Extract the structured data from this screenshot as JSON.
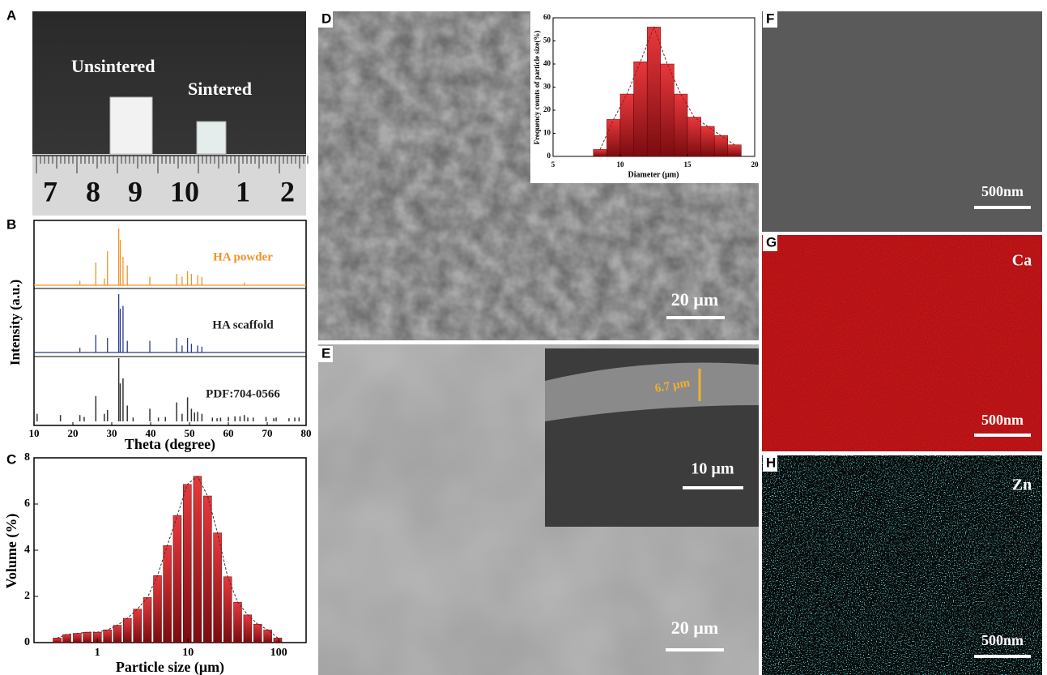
{
  "panel_a": {
    "label": "A",
    "unsintered": "Unsintered",
    "sintered": "Sintered",
    "ruler": [
      "7",
      "8",
      "9",
      "10",
      "1",
      "2"
    ]
  },
  "panel_b": {
    "label": "B",
    "ylabel": "Intensity (a.u.)",
    "xlabel": "Theta (degree)",
    "xlim": [
      10,
      80
    ],
    "xticks": [
      10,
      20,
      30,
      40,
      50,
      60,
      70,
      80
    ],
    "ylim": [
      0,
      1
    ],
    "series": [
      {
        "name": "HA powder",
        "color": "#f0922a",
        "x": [
          21.8,
          25.9,
          28.1,
          28.9,
          31.8,
          32.2,
          32.9,
          34.0,
          39.8,
          46.7,
          48.1,
          49.5,
          50.5,
          52.1,
          53.2,
          64.1
        ],
        "values": [
          0.08,
          0.4,
          0.12,
          0.6,
          1.0,
          0.8,
          0.5,
          0.35,
          0.15,
          0.2,
          0.15,
          0.25,
          0.2,
          0.18,
          0.15,
          0.05
        ]
      },
      {
        "name": "HA scaffold",
        "color": "#2b3990",
        "x": [
          21.8,
          25.9,
          28.9,
          31.8,
          32.2,
          32.9,
          34.0,
          39.8,
          46.7,
          48.1,
          49.5,
          50.5,
          52.1,
          53.2
        ],
        "values": [
          0.08,
          0.3,
          0.25,
          1.0,
          0.75,
          0.8,
          0.2,
          0.2,
          0.25,
          0.12,
          0.25,
          0.15,
          0.12,
          0.1
        ]
      },
      {
        "name": "PDF:704-0566",
        "color": "#333333",
        "x": [
          10.8,
          16.8,
          21.8,
          22.9,
          25.9,
          28.1,
          28.9,
          31.8,
          32.2,
          32.9,
          34.0,
          35.5,
          39.8,
          42.0,
          43.8,
          46.7,
          48.1,
          49.5,
          50.5,
          51.3,
          52.1,
          53.2,
          55.9,
          57.1,
          58.0,
          60.0,
          61.7,
          63.0,
          64.1,
          65.0,
          66.4,
          69.7,
          71.7,
          72.3,
          75.6,
          77.1,
          78.2
        ],
        "values": [
          0.12,
          0.1,
          0.1,
          0.07,
          0.4,
          0.12,
          0.18,
          1.0,
          0.6,
          0.68,
          0.25,
          0.06,
          0.2,
          0.06,
          0.07,
          0.3,
          0.12,
          0.38,
          0.2,
          0.14,
          0.15,
          0.12,
          0.06,
          0.05,
          0.06,
          0.07,
          0.08,
          0.08,
          0.1,
          0.06,
          0.06,
          0.07,
          0.05,
          0.06,
          0.05,
          0.06,
          0.06
        ]
      }
    ]
  },
  "panel_c": {
    "label": "C",
    "type": "bar",
    "xlabel": "Particle size (μm)",
    "ylabel": "Volume (%)",
    "log_x": true,
    "color": "#d9252a",
    "x": [
      0.36,
      0.46,
      0.6,
      0.77,
      1,
      1.29,
      1.66,
      2.14,
      2.76,
      3.56,
      4.6,
      5.9,
      7.6,
      9.8,
      12.7,
      16.4,
      21.1,
      27.3,
      35.2,
      45.4,
      58.5,
      75.5,
      97.4
    ],
    "values": [
      0.2,
      0.35,
      0.4,
      0.45,
      0.45,
      0.55,
      0.75,
      1.05,
      1.45,
      1.95,
      2.9,
      4.2,
      5.5,
      6.85,
      7.2,
      6.35,
      4.75,
      2.85,
      1.75,
      1.2,
      0.8,
      0.55,
      0.2
    ],
    "xlim": [
      0.2,
      200
    ],
    "xticks": [
      1,
      10,
      100
    ],
    "ylim": [
      0,
      8
    ],
    "yticks": [
      0,
      2,
      4,
      6,
      8
    ]
  },
  "panel_d": {
    "label": "D",
    "scale": "20 µm",
    "inset": {
      "type": "bar",
      "xlabel": "Diameter (μm)",
      "ylabel": "Frequency counts of particle size(%)",
      "color": "#d9252a",
      "x": [
        8.5,
        9.5,
        10.5,
        11.5,
        12.5,
        13.5,
        14.5,
        15.5,
        16.5,
        17.5,
        18.5
      ],
      "values": [
        3,
        16,
        27,
        41,
        56,
        40,
        27,
        17,
        13,
        9,
        5
      ],
      "xlim": [
        5,
        20
      ],
      "xticks": [
        5,
        10,
        15,
        20
      ],
      "ylim": [
        0,
        60
      ],
      "yticks": [
        0,
        10,
        20,
        30,
        40,
        50,
        60
      ]
    }
  },
  "panel_e": {
    "label": "E",
    "scale": "20 µm",
    "inset_thickness": "6.7 µm",
    "inset_scale": "10 µm"
  },
  "panel_f": {
    "label": "F",
    "scale": "500nm"
  },
  "panel_g": {
    "label": "G",
    "element": "Ca",
    "scale": "500nm"
  },
  "panel_h": {
    "label": "H",
    "element": "Zn",
    "scale": "500nm"
  }
}
